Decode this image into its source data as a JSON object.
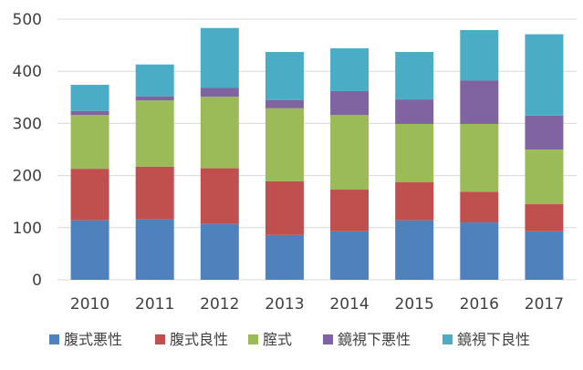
{
  "chart_data": {
    "type": "bar",
    "stacked": true,
    "categories": [
      "2010",
      "2011",
      "2012",
      "2013",
      "2014",
      "2015",
      "2016",
      "2017"
    ],
    "series": [
      {
        "name": "腹式悪性",
        "color": "#4f81bd",
        "values": [
          114,
          116,
          107,
          86,
          93,
          114,
          110,
          93
        ]
      },
      {
        "name": "腹式良性",
        "color": "#c0504d",
        "values": [
          99,
          101,
          107,
          103,
          80,
          73,
          59,
          52
        ]
      },
      {
        "name": "腟式",
        "color": "#9bbb59",
        "values": [
          103,
          127,
          137,
          140,
          143,
          112,
          130,
          105
        ]
      },
      {
        "name": "鏡視下悪性",
        "color": "#8064a2",
        "values": [
          8,
          8,
          17,
          16,
          46,
          47,
          83,
          65
        ]
      },
      {
        "name": "鏡視下良性",
        "color": "#4bacc6",
        "values": [
          50,
          61,
          115,
          92,
          82,
          91,
          97,
          156
        ]
      }
    ],
    "ylim": [
      0,
      500
    ],
    "yticks": [
      "0",
      "100",
      "200",
      "300",
      "400",
      "500"
    ],
    "grid": true,
    "legend_position": "bottom"
  }
}
